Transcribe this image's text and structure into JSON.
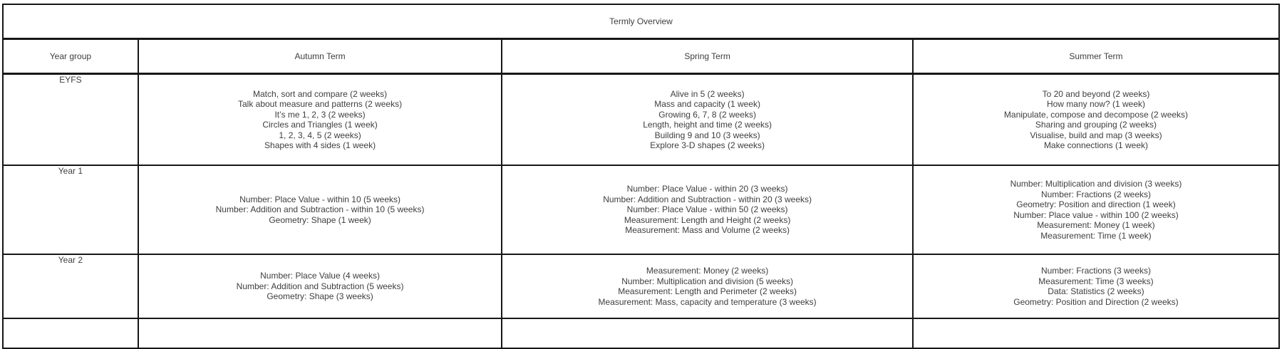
{
  "title": "Termly Overview",
  "columns": [
    "Year group",
    "Autumn Term",
    "Spring Term",
    "Summer Term"
  ],
  "rows": [
    {
      "year_group": "EYFS",
      "autumn": [
        "Match, sort and compare (2 weeks)",
        "Talk about measure and patterns (2 weeks)",
        "It’s me 1, 2, 3 (2 weeks)",
        "Circles and Triangles (1 week)",
        "1, 2, 3, 4, 5 (2 weeks)",
        "Shapes with 4 sides (1 week)"
      ],
      "spring": [
        "Alive in 5 (2 weeks)",
        "Mass and capacity (1 week)",
        "Growing 6, 7, 8 (2 weeks)",
        "Length, height and time (2 weeks)",
        "Building 9 and 10 (3 weeks)",
        "Explore 3-D shapes (2 weeks)"
      ],
      "summer": [
        "To 20 and beyond (2 weeks)",
        "How many now? (1 week)",
        "Manipulate, compose and decompose (2 weeks)",
        "Sharing and grouping (2 weeks)",
        "Visualise, build and map (3 weeks)",
        "Make connections (1 week)"
      ]
    },
    {
      "year_group": "Year 1",
      "autumn": [
        "Number: Place Value - within 10 (5 weeks)",
        "Number: Addition and Subtraction - within 10 (5 weeks)",
        "Geometry: Shape (1 week)"
      ],
      "spring": [
        "Number: Place Value - within 20 (3 weeks)",
        "Number: Addition and Subtraction - within 20 (3 weeks)",
        "Number: Place Value - within 50 (2 weeks)",
        "Measurement: Length and Height (2 weeks)",
        "Measurement: Mass and Volume (2 weeks)"
      ],
      "summer": [
        "Number: Multiplication and division (3 weeks)",
        "Number: Fractions (2 weeks)",
        "Geometry: Position and direction (1 week)",
        "Number: Place value - within 100 (2 weeks)",
        "Measurement: Money (1 week)",
        "Measurement: Time (1 week)"
      ]
    },
    {
      "year_group": "Year 2",
      "autumn": [
        "Number: Place Value (4 weeks)",
        "Number: Addition and Subtraction (5 weeks)",
        "Geometry: Shape (3 weeks)"
      ],
      "spring": [
        "Measurement: Money (2 weeks)",
        "Number: Multiplication and division (5 weeks)",
        "Measurement: Length and Perimeter (2 weeks)",
        "Measurement: Mass, capacity and temperature (3 weeks)"
      ],
      "summer": [
        "Number: Fractions (3 weeks)",
        "Measurement: Time (3 weeks)",
        "Data: Statistics (2 weeks)",
        "Geometry: Position and Direction (2 weeks)"
      ]
    }
  ]
}
